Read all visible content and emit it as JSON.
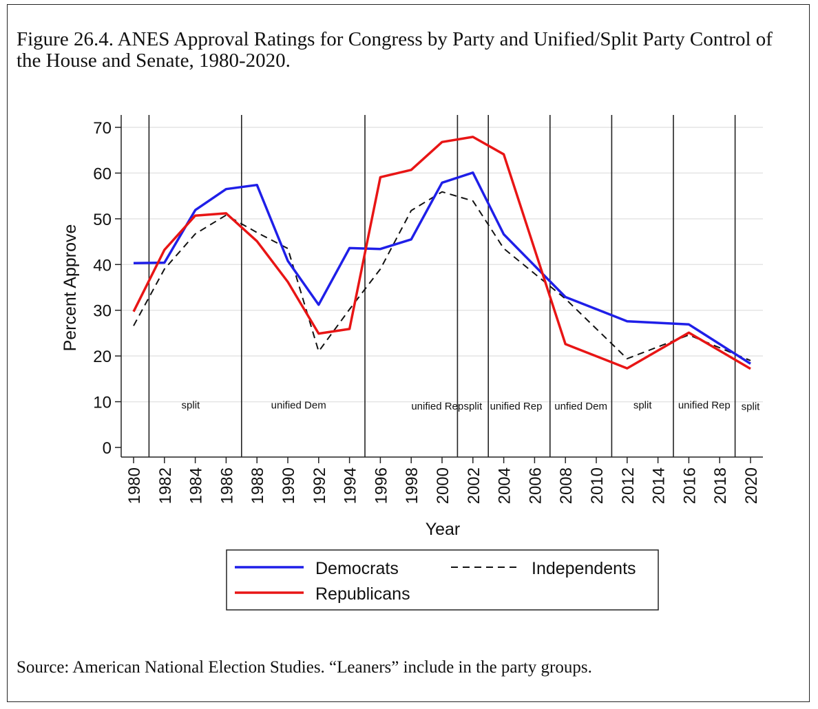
{
  "figure": {
    "title": "Figure 26.4.  ANES Approval Ratings for Congress by Party and Unified/Split Party Control of the House and Senate, 1980-2020.",
    "source": "Source: American National Election Studies. “Leaners” include in the party groups."
  },
  "chart_data": {
    "type": "line",
    "xlabel": "Year",
    "ylabel": "Percent Approve",
    "xlim": [
      1980,
      2020
    ],
    "ylim": [
      0,
      70
    ],
    "x_ticks": [
      1980,
      1982,
      1984,
      1986,
      1988,
      1990,
      1992,
      1994,
      1996,
      1998,
      2000,
      2002,
      2004,
      2006,
      2008,
      2010,
      2012,
      2014,
      2016,
      2018,
      2020
    ],
    "y_ticks": [
      0,
      10,
      20,
      30,
      40,
      50,
      60,
      70
    ],
    "grid": true,
    "legend_position": "bottom",
    "series": [
      {
        "name": "Democrats",
        "color": "#1f1fe8",
        "style": "solid",
        "points": [
          [
            1980,
            40.3
          ],
          [
            1982,
            40.4
          ],
          [
            1984,
            51.9
          ],
          [
            1986,
            56.5
          ],
          [
            1988,
            57.4
          ],
          [
            1990,
            40.8
          ],
          [
            1992,
            31.2
          ],
          [
            1994,
            43.6
          ],
          [
            1996,
            43.4
          ],
          [
            1998,
            45.5
          ],
          [
            2000,
            57.9
          ],
          [
            2002,
            60.1
          ],
          [
            2004,
            46.6
          ],
          [
            2008,
            32.9
          ],
          [
            2012,
            27.6
          ],
          [
            2016,
            26.9
          ],
          [
            2020,
            18.3
          ]
        ]
      },
      {
        "name": "Republicans",
        "color": "#e81515",
        "style": "solid",
        "points": [
          [
            1980,
            29.7
          ],
          [
            1982,
            43.2
          ],
          [
            1984,
            50.7
          ],
          [
            1986,
            51.2
          ],
          [
            1988,
            45.1
          ],
          [
            1990,
            36.2
          ],
          [
            1992,
            24.9
          ],
          [
            1994,
            25.9
          ],
          [
            1996,
            59.1
          ],
          [
            1998,
            60.7
          ],
          [
            2000,
            66.8
          ],
          [
            2002,
            67.9
          ],
          [
            2004,
            64.1
          ],
          [
            2008,
            22.6
          ],
          [
            2012,
            17.3
          ],
          [
            2016,
            25.1
          ],
          [
            2020,
            17.2
          ]
        ]
      },
      {
        "name": "Independents",
        "color": "#111111",
        "style": "dashed",
        "points": [
          [
            1980,
            26.6
          ],
          [
            1982,
            39.0
          ],
          [
            1984,
            46.7
          ],
          [
            1986,
            50.8
          ],
          [
            1988,
            47.0
          ],
          [
            1990,
            43.5
          ],
          [
            1992,
            21.0
          ],
          [
            1994,
            30.2
          ],
          [
            1996,
            39.0
          ],
          [
            1998,
            51.8
          ],
          [
            2000,
            55.9
          ],
          [
            2002,
            53.9
          ],
          [
            2004,
            43.5
          ],
          [
            2008,
            32.5
          ],
          [
            2012,
            19.4
          ],
          [
            2016,
            24.6
          ],
          [
            2020,
            19.0
          ]
        ]
      }
    ],
    "control_boundaries": [
      1981,
      1987,
      1995,
      2001,
      2003,
      2007,
      2011,
      2015,
      2019
    ],
    "control_periods": [
      {
        "label": "split",
        "x": 1983.7,
        "y": 8.5
      },
      {
        "label": "unified Dem",
        "x": 1990.7,
        "y": 8.5
      },
      {
        "label": "unified Rep",
        "x": 1999.7,
        "y": 8.3
      },
      {
        "label": "split",
        "x": 2002.0,
        "y": 8.3
      },
      {
        "label": "unified Rep",
        "x": 2004.8,
        "y": 8.3
      },
      {
        "label": "unfied Dem",
        "x": 2009.0,
        "y": 8.3
      },
      {
        "label": "split",
        "x": 2013.0,
        "y": 8.5
      },
      {
        "label": "unified Rep",
        "x": 2017.0,
        "y": 8.5
      },
      {
        "label": "split",
        "x": 2020.0,
        "y": 8.2
      }
    ]
  }
}
